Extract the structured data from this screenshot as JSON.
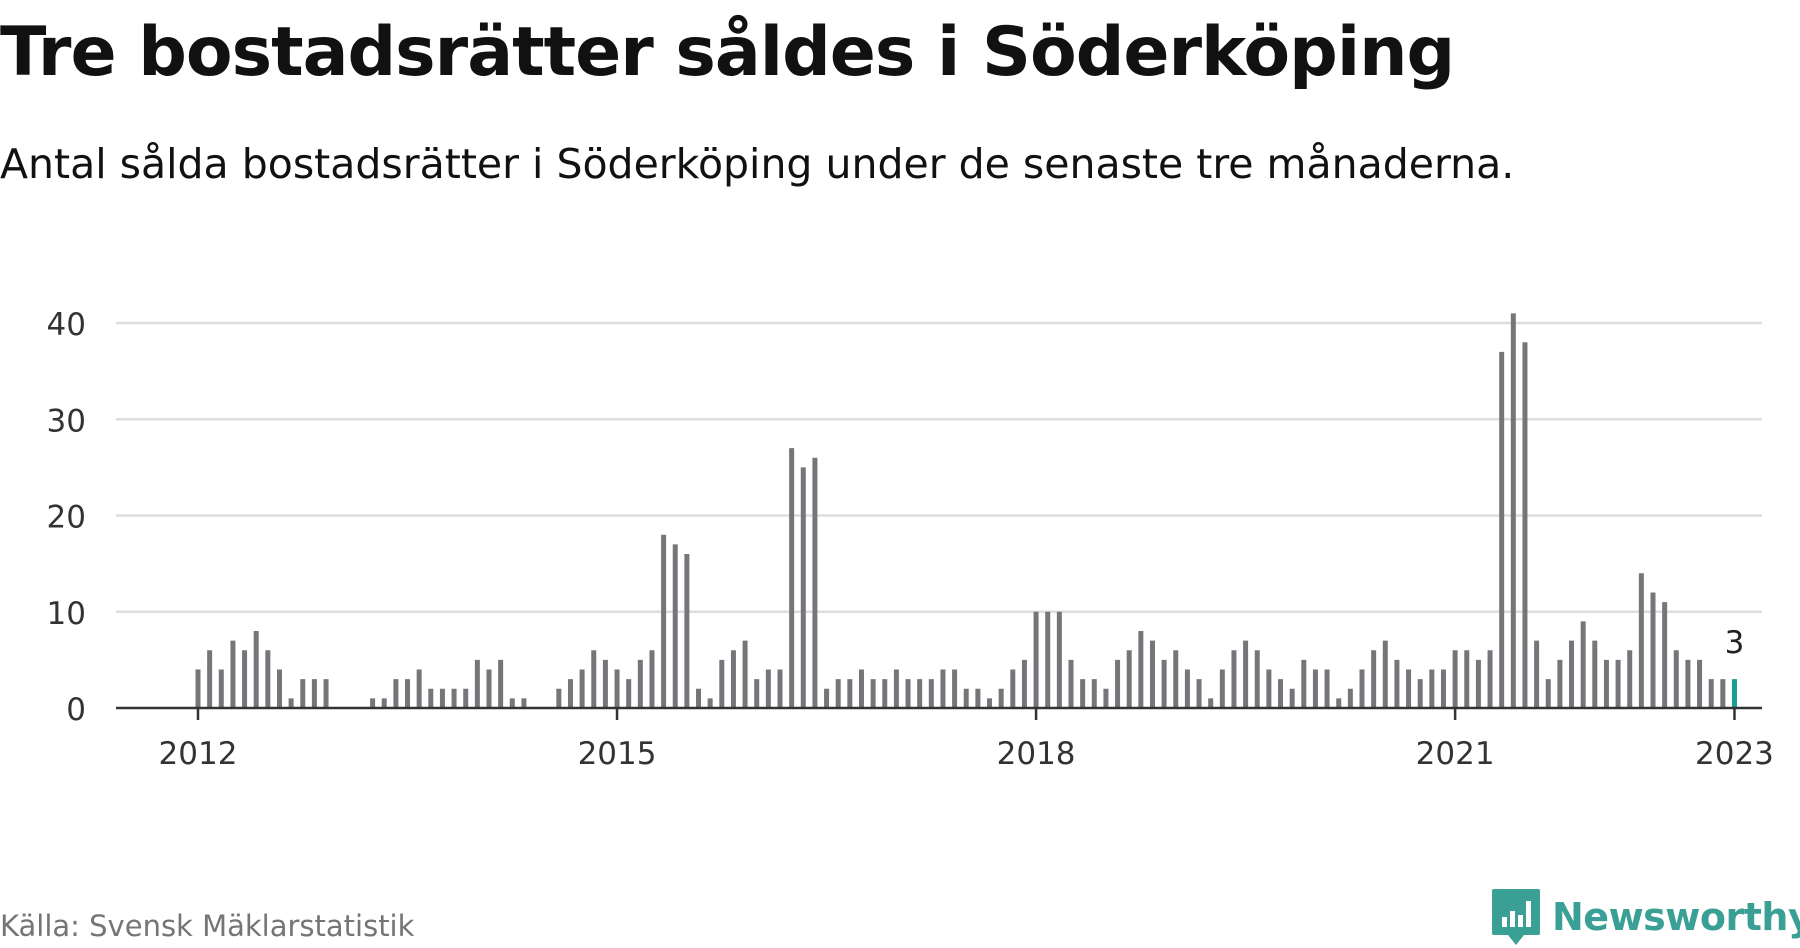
{
  "title": "Tre bostadsrätter såldes i Söderköping",
  "subtitle": "Antal sålda bostadsrätter i Söderköping under de senaste tre månaderna.",
  "source": "Källa: Svensk Mäklarstatistik",
  "brand": {
    "name": "Newsworthy",
    "color": "#3a9f94",
    "icon": "newsworthy-logo-icon"
  },
  "chart_data": {
    "type": "bar",
    "start": "2012-01",
    "xtick_labels": [
      "2012",
      "2015",
      "2018",
      "2021",
      "2023"
    ],
    "ylim": [
      0,
      40
    ],
    "yticks": [
      0,
      10,
      20,
      30,
      40
    ],
    "grid": true,
    "bar_color": "#76767a",
    "highlight_color": "#1a9e93",
    "highlight_label": "3",
    "values": [
      4,
      6,
      4,
      7,
      6,
      8,
      6,
      4,
      1,
      3,
      3,
      3,
      0,
      0,
      0,
      1,
      1,
      3,
      3,
      4,
      2,
      2,
      2,
      2,
      5,
      4,
      5,
      1,
      1,
      0,
      0,
      2,
      3,
      4,
      6,
      5,
      4,
      3,
      5,
      6,
      18,
      17,
      16,
      2,
      1,
      5,
      6,
      7,
      3,
      4,
      4,
      27,
      25,
      26,
      2,
      3,
      3,
      4,
      3,
      3,
      4,
      3,
      3,
      3,
      4,
      4,
      2,
      2,
      1,
      2,
      4,
      5,
      10,
      10,
      10,
      5,
      3,
      3,
      2,
      5,
      6,
      8,
      7,
      5,
      6,
      4,
      3,
      1,
      4,
      6,
      7,
      6,
      4,
      3,
      2,
      5,
      4,
      4,
      1,
      2,
      4,
      6,
      7,
      5,
      4,
      3,
      4,
      4,
      6,
      6,
      5,
      6,
      37,
      41,
      38,
      7,
      3,
      5,
      7,
      9,
      7,
      5,
      5,
      6,
      14,
      12,
      11,
      6,
      5,
      5,
      3,
      3,
      3
    ]
  }
}
